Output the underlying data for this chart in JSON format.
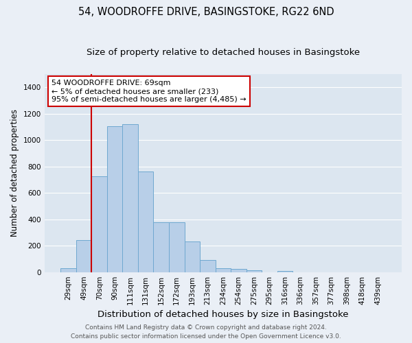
{
  "title": "54, WOODROFFE DRIVE, BASINGSTOKE, RG22 6ND",
  "subtitle": "Size of property relative to detached houses in Basingstoke",
  "xlabel": "Distribution of detached houses by size in Basingstoke",
  "ylabel": "Number of detached properties",
  "categories": [
    "29sqm",
    "49sqm",
    "70sqm",
    "90sqm",
    "111sqm",
    "131sqm",
    "152sqm",
    "172sqm",
    "193sqm",
    "213sqm",
    "234sqm",
    "254sqm",
    "275sqm",
    "295sqm",
    "316sqm",
    "336sqm",
    "357sqm",
    "377sqm",
    "398sqm",
    "418sqm",
    "439sqm"
  ],
  "values": [
    30,
    240,
    725,
    1105,
    1120,
    760,
    375,
    375,
    230,
    90,
    30,
    22,
    15,
    0,
    10,
    0,
    0,
    0,
    0,
    0,
    0
  ],
  "bar_color": "#b8cfe8",
  "bar_edge_color": "#6fa8d0",
  "vline_color": "#cc0000",
  "vline_x_index": 2,
  "annotation_line1": "54 WOODROFFE DRIVE: 69sqm",
  "annotation_line2": "← 5% of detached houses are smaller (233)",
  "annotation_line3": "95% of semi-detached houses are larger (4,485) →",
  "annotation_box_edgecolor": "#cc0000",
  "ylim": [
    0,
    1500
  ],
  "yticks": [
    0,
    200,
    400,
    600,
    800,
    1000,
    1200,
    1400
  ],
  "bg_color": "#eaeff6",
  "plot_bg_color": "#dce6f0",
  "grid_color": "#ffffff",
  "footer_line1": "Contains HM Land Registry data © Crown copyright and database right 2024.",
  "footer_line2": "Contains public sector information licensed under the Open Government Licence v3.0.",
  "title_fontsize": 10.5,
  "subtitle_fontsize": 9.5,
  "xlabel_fontsize": 9.5,
  "ylabel_fontsize": 8.5,
  "tick_fontsize": 7.5,
  "annotation_fontsize": 8,
  "footer_fontsize": 6.5
}
